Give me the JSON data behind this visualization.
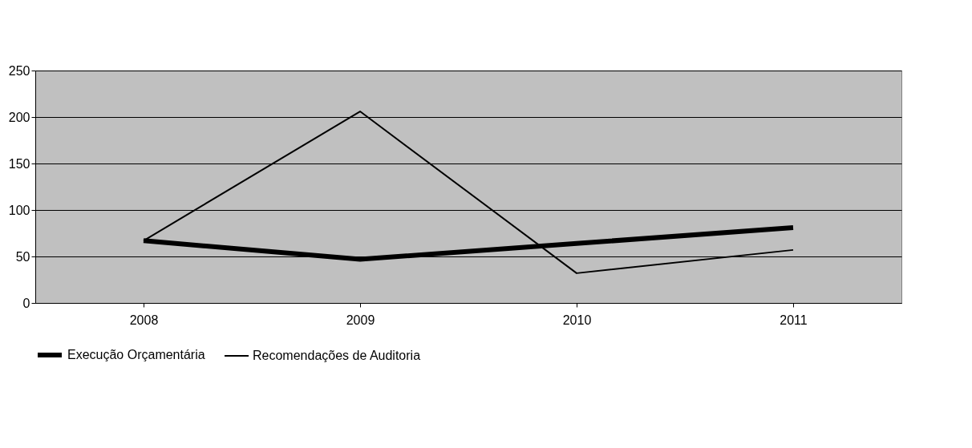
{
  "chart_data": {
    "type": "line",
    "categories": [
      "2008",
      "2009",
      "2010",
      "2011"
    ],
    "series": [
      {
        "name": "Execução Orçamentária",
        "color": "#000000",
        "values": [
          67,
          47,
          64,
          81
        ]
      },
      {
        "name": "Recomendações de Auditoria",
        "color": "#000000",
        "values": [
          67,
          206,
          32,
          57
        ]
      }
    ],
    "ylim": [
      0,
      250
    ],
    "yticks": [
      0,
      50,
      100,
      150,
      200,
      250
    ],
    "grid": "y",
    "legend": "bottom",
    "marker": "none",
    "line_style": "solid"
  }
}
